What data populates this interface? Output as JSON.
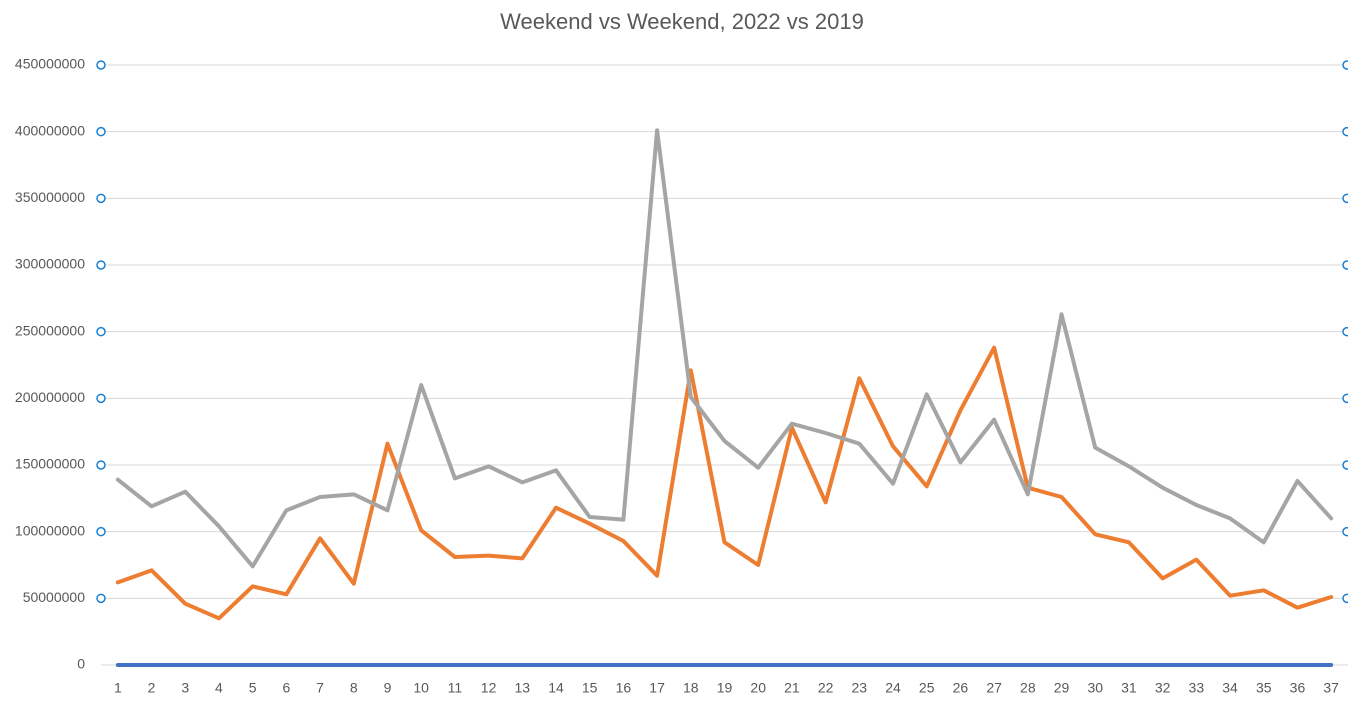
{
  "chart_data": {
    "type": "line",
    "title": "Weekend vs Weekend, 2022 vs 2019",
    "categories": [
      1,
      2,
      3,
      4,
      5,
      6,
      7,
      8,
      9,
      10,
      11,
      12,
      13,
      14,
      15,
      16,
      17,
      18,
      19,
      20,
      21,
      22,
      23,
      24,
      25,
      26,
      27,
      28,
      29,
      30,
      31,
      32,
      33,
      34,
      35,
      36,
      37
    ],
    "series": [
      {
        "color": "#4472c4",
        "values": [
          0,
          0,
          0,
          0,
          0,
          0,
          0,
          0,
          0,
          0,
          0,
          0,
          0,
          0,
          0,
          0,
          0,
          0,
          0,
          0,
          0,
          0,
          0,
          0,
          0,
          0,
          0,
          0,
          0,
          0,
          0,
          0,
          0,
          0,
          0,
          0,
          0
        ]
      },
      {
        "color": "#ed7d31",
        "values": [
          62000000,
          71000000,
          46000000,
          35000000,
          59000000,
          53000000,
          95000000,
          61000000,
          166000000,
          101000000,
          81000000,
          82000000,
          80000000,
          118000000,
          106000000,
          93000000,
          67000000,
          221000000,
          92000000,
          75000000,
          178000000,
          122000000,
          215000000,
          164000000,
          134000000,
          191000000,
          238000000,
          133000000,
          126000000,
          98000000,
          92000000,
          65000000,
          79000000,
          52000000,
          56000000,
          43000000,
          51000000
        ]
      },
      {
        "color": "#a5a5a5",
        "values": [
          139000000,
          119000000,
          130000000,
          104000000,
          74000000,
          116000000,
          126000000,
          128000000,
          116000000,
          210000000,
          140000000,
          149000000,
          137000000,
          146000000,
          111000000,
          109000000,
          401000000,
          201000000,
          168000000,
          148000000,
          181000000,
          174000000,
          166000000,
          136000000,
          203000000,
          152000000,
          184000000,
          128000000,
          263000000,
          163000000,
          149000000,
          133000000,
          120000000,
          110000000,
          92000000,
          138000000,
          110000000
        ]
      }
    ],
    "ylim": [
      0,
      450000000
    ],
    "yticks": [
      0,
      50000000,
      100000000,
      150000000,
      200000000,
      250000000,
      300000000,
      350000000,
      400000000,
      450000000
    ],
    "grid": true
  }
}
